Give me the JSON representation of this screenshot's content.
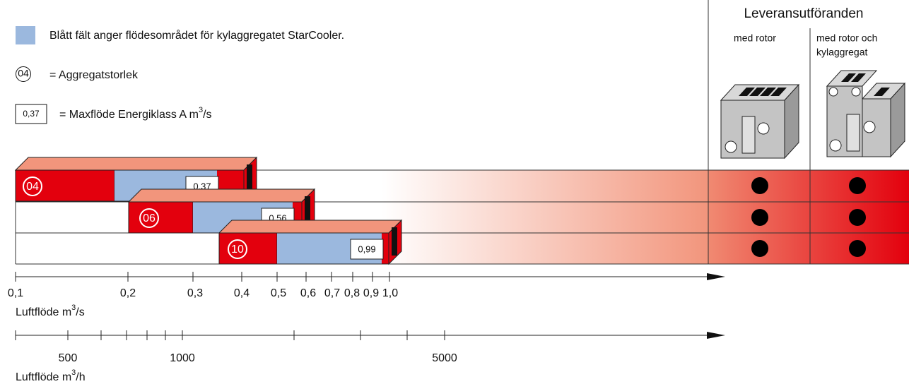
{
  "legend": {
    "blue_text": "Blått fält anger flödesområdet för kylaggregatet StarCooler.",
    "size_symbol": "04",
    "size_text": "= Aggregatstorlek",
    "flow_symbol": "0,37",
    "flow_text": "= Maxflöde Energiklass A m",
    "flow_sup": "3",
    "flow_suffix": "/s"
  },
  "delivery": {
    "title": "Leveransutföranden",
    "columns": [
      {
        "lines": [
          "med rotor"
        ]
      },
      {
        "lines": [
          "med rotor och",
          "kylaggregat"
        ]
      }
    ]
  },
  "units": [
    {
      "size": "04",
      "max_flow": "0,37"
    },
    {
      "size": "06",
      "max_flow": "0,56"
    },
    {
      "size": "10",
      "max_flow": "0,99"
    }
  ],
  "axis_m3s": {
    "ticks": [
      "0,1",
      "0,2",
      "0,3",
      "0,4",
      "0,5",
      "0,6",
      "0,7",
      "0,8",
      "0,9",
      "1,0"
    ],
    "label": "Luftflöde m",
    "label_sup": "3",
    "label_suffix": "/s"
  },
  "axis_m3h": {
    "ticks": [
      "500",
      "1000",
      "5000"
    ],
    "label": "Luftflöde m",
    "label_sup": "3",
    "label_suffix": "/h"
  }
}
